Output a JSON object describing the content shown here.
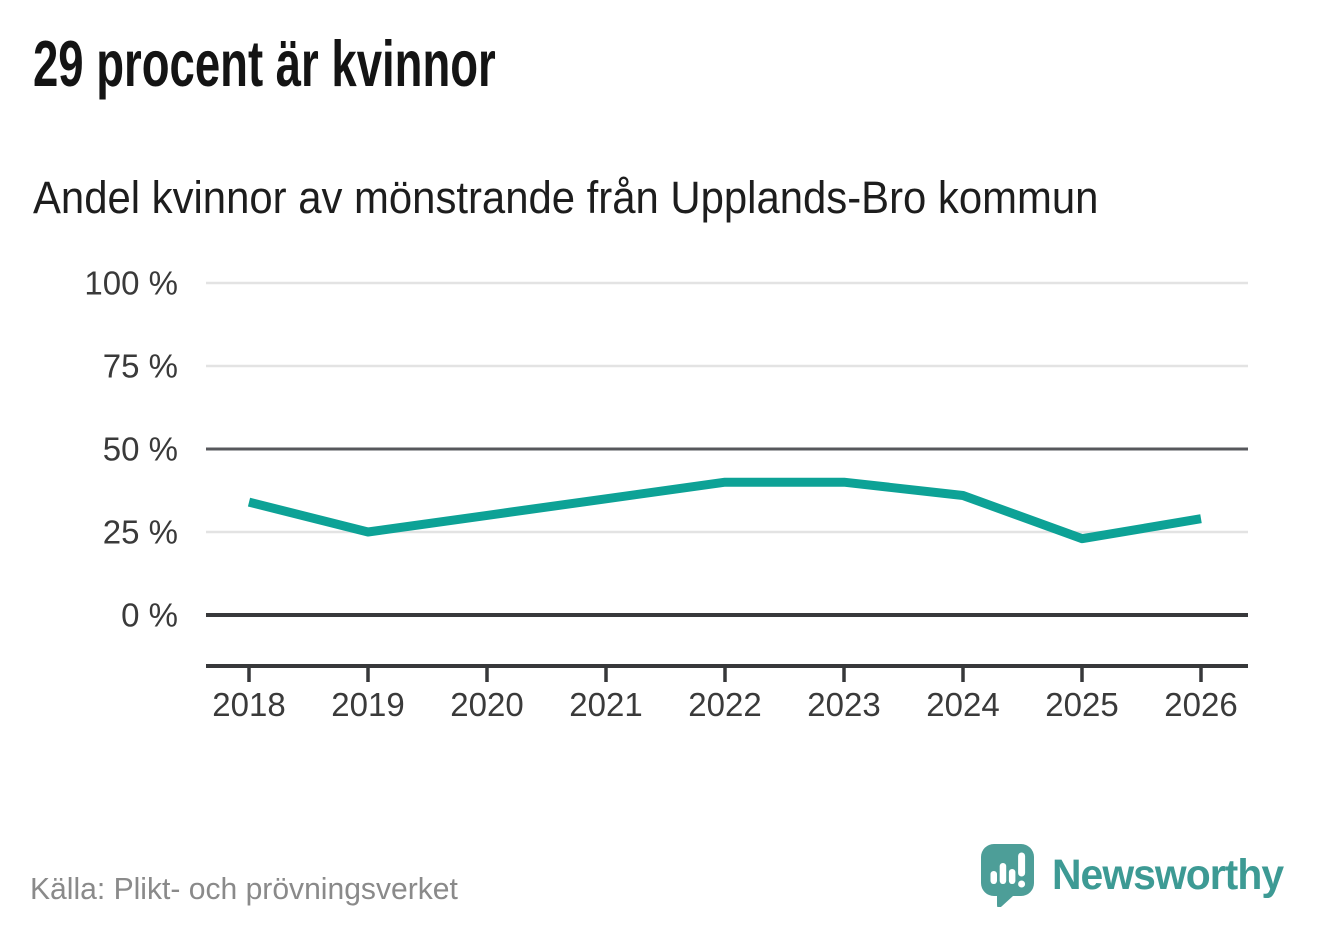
{
  "header": {
    "title": "29 procent är kvinnor",
    "subtitle": "Andel kvinnor av mönstrande från Upplands-Bro kommun"
  },
  "chart_data": {
    "type": "line",
    "title": "29 procent är kvinnor",
    "subtitle": "Andel kvinnor av mönstrande från Upplands-Bro kommun",
    "categories": [
      "2018",
      "2019",
      "2020",
      "2021",
      "2022",
      "2023",
      "2024",
      "2025",
      "2026"
    ],
    "series": [
      {
        "name": "Andel kvinnor av mönstrande",
        "values": [
          34,
          25,
          30,
          35,
          40,
          40,
          36,
          23,
          29
        ],
        "color": "#0da296"
      }
    ],
    "xlabel": "",
    "ylabel": "",
    "ylim": [
      0,
      100
    ],
    "y_ticks": [
      {
        "value": 0,
        "label": "0 %",
        "grid": "dark"
      },
      {
        "value": 25,
        "label": "25 %",
        "grid": "light"
      },
      {
        "value": 50,
        "label": "50 %",
        "grid": "mid"
      },
      {
        "value": 75,
        "label": "75 %",
        "grid": "light"
      },
      {
        "value": 100,
        "label": "100 %",
        "grid": "light"
      }
    ],
    "grid": true,
    "legend_position": "none"
  },
  "footer": {
    "source": "Källa: Plikt- och prövningsverket",
    "logo_text": "Newsworthy"
  },
  "icons": {
    "logo_mark": "newsworthy-speech-bubble-barchart-icon"
  },
  "colors": {
    "line_teal": "#0da296",
    "logo_text_teal": "#3d9a94",
    "logo_mark_teal": "#4d9e98",
    "grid_light": "#e3e3e3",
    "grid_mid": "#57585c",
    "grid_dark": "#38393b",
    "axis_line": "#37383a",
    "tick_text": "#3a3a3a",
    "title_text": "#141414",
    "source_text": "#8a8a8a",
    "background": "#ffffff"
  }
}
